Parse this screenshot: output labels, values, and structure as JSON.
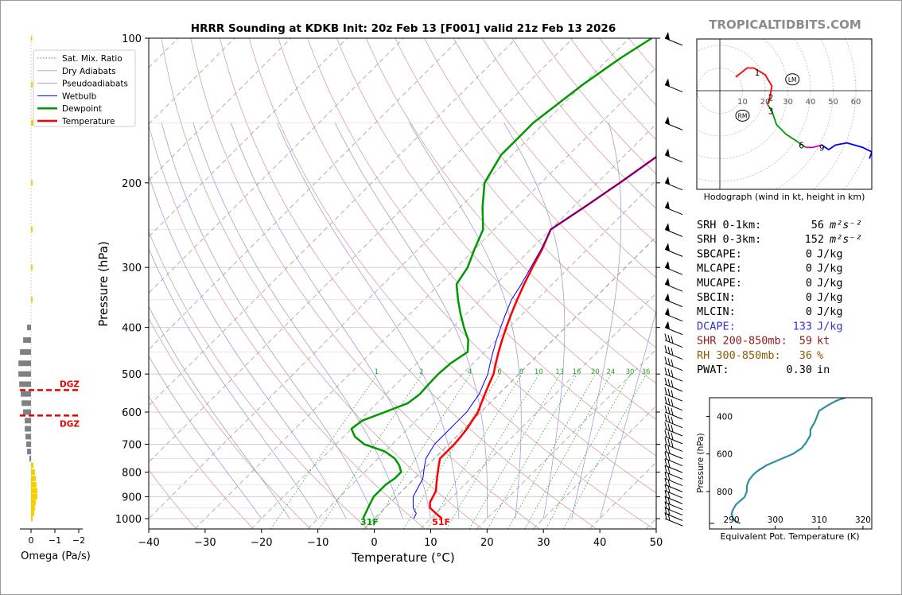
{
  "chart_data": [
    {
      "type": "line",
      "subtype": "skew-t log-p sounding",
      "title": "HRRR Sounding at KDKB Init: 20z Feb 13 [F001] valid 21z Feb 13 2026",
      "xlabel": "Temperature (°C)",
      "ylabel": "Pressure (hPa)",
      "xlim": [
        -40,
        50
      ],
      "ylim": [
        1050,
        100
      ],
      "y_scale": "log",
      "x_ticks": [
        "−40",
        "−30",
        "−20",
        "−10",
        "0",
        "10",
        "20",
        "30",
        "40",
        "50"
      ],
      "y_ticks": [
        "100",
        "200",
        "300",
        "400",
        "500",
        "600",
        "700",
        "800",
        "900",
        "1000"
      ],
      "legend": {
        "placement": "top-left",
        "entries": [
          {
            "label": "Sat. Mix. Ratio",
            "color": "#2ca02c",
            "style": "dotted"
          },
          {
            "label": "Dry Adiabats",
            "color": "#d9a0a0",
            "style": "solid"
          },
          {
            "label": "Pseudoadiabats",
            "color": "#a0a0d9",
            "style": "solid"
          },
          {
            "label": "Wetbulb",
            "color": "#0000ff",
            "style": "solid"
          },
          {
            "label": "Dewpoint",
            "color": "#009900",
            "style": "solid"
          },
          {
            "label": "Temperature",
            "color": "#ff0000",
            "style": "solid"
          }
        ]
      },
      "mixing_ratio_labels": [
        "1",
        "2",
        "4",
        "6",
        "8",
        "10",
        "13",
        "16",
        "20",
        "24",
        "30",
        "36"
      ],
      "series": [
        {
          "name": "Temperature",
          "color": "#ff0000",
          "points": [
            [
              1000,
              12
            ],
            [
              975,
              10
            ],
            [
              950,
              8
            ],
            [
              925,
              7
            ],
            [
              900,
              6.5
            ],
            [
              875,
              6
            ],
            [
              850,
              5
            ],
            [
              825,
              4
            ],
            [
              800,
              3
            ],
            [
              775,
              2
            ],
            [
              750,
              1
            ],
            [
              725,
              1
            ],
            [
              700,
              1
            ],
            [
              675,
              0.8
            ],
            [
              650,
              0.5
            ],
            [
              625,
              0
            ],
            [
              600,
              -0.5
            ],
            [
              575,
              -1.5
            ],
            [
              550,
              -2.5
            ],
            [
              525,
              -3.5
            ],
            [
              500,
              -4.5
            ],
            [
              475,
              -6
            ],
            [
              450,
              -7.5
            ],
            [
              425,
              -9
            ],
            [
              400,
              -10.5
            ],
            [
              375,
              -12
            ],
            [
              350,
              -13.5
            ],
            [
              325,
              -15
            ],
            [
              300,
              -16.5
            ],
            [
              275,
              -18
            ],
            [
              250,
              -20
            ],
            [
              225,
              -18
            ],
            [
              200,
              -16
            ],
            [
              175,
              -14
            ],
            [
              150,
              -12
            ],
            [
              125,
              -12
            ],
            [
              110,
              -11.5
            ],
            [
              100,
              -11
            ]
          ]
        },
        {
          "name": "Dewpoint",
          "color": "#009900",
          "points": [
            [
              1000,
              -2
            ],
            [
              975,
              -2.5
            ],
            [
              950,
              -3
            ],
            [
              925,
              -3.5
            ],
            [
              900,
              -4
            ],
            [
              875,
              -4
            ],
            [
              850,
              -4
            ],
            [
              825,
              -3.5
            ],
            [
              800,
              -3.5
            ],
            [
              775,
              -5
            ],
            [
              750,
              -7
            ],
            [
              725,
              -10
            ],
            [
              700,
              -15
            ],
            [
              675,
              -18
            ],
            [
              650,
              -20
            ],
            [
              625,
              -19.5
            ],
            [
              600,
              -17
            ],
            [
              575,
              -14.5
            ],
            [
              550,
              -14
            ],
            [
              525,
              -14.2
            ],
            [
              500,
              -14.3
            ],
            [
              475,
              -14
            ],
            [
              450,
              -13
            ],
            [
              425,
              -15
            ],
            [
              400,
              -18
            ],
            [
              375,
              -21
            ],
            [
              350,
              -24
            ],
            [
              325,
              -27
            ],
            [
              300,
              -28
            ],
            [
              275,
              -30
            ],
            [
              250,
              -32
            ],
            [
              225,
              -36
            ],
            [
              200,
              -40
            ],
            [
              175,
              -42
            ],
            [
              150,
              -42
            ],
            [
              125,
              -40
            ],
            [
              110,
              -38
            ],
            [
              100,
              -36
            ]
          ]
        },
        {
          "name": "Wetbulb",
          "color": "#0000ff",
          "points": [
            [
              1000,
              7
            ],
            [
              975,
              6.5
            ],
            [
              950,
              5
            ],
            [
              925,
              4
            ],
            [
              900,
              3
            ],
            [
              875,
              2.5
            ],
            [
              850,
              2
            ],
            [
              825,
              1.5
            ],
            [
              800,
              0.5
            ],
            [
              775,
              -0.5
            ],
            [
              750,
              -1.5
            ],
            [
              725,
              -2
            ],
            [
              700,
              -2.5
            ],
            [
              675,
              -2.5
            ],
            [
              650,
              -2.5
            ],
            [
              625,
              -2.5
            ],
            [
              600,
              -2.5
            ],
            [
              575,
              -3
            ],
            [
              550,
              -3.5
            ],
            [
              525,
              -4.5
            ],
            [
              500,
              -5.5
            ],
            [
              475,
              -7
            ],
            [
              450,
              -8.5
            ],
            [
              425,
              -10
            ],
            [
              400,
              -11.5
            ],
            [
              375,
              -13
            ],
            [
              350,
              -14.5
            ],
            [
              325,
              -15.5
            ],
            [
              300,
              -16.8
            ],
            [
              275,
              -18.2
            ],
            [
              250,
              -20
            ],
            [
              225,
              -18
            ],
            [
              200,
              -16
            ],
            [
              175,
              -14
            ],
            [
              150,
              -12
            ],
            [
              125,
              -12
            ],
            [
              110,
              -11.5
            ],
            [
              100,
              -11
            ]
          ]
        }
      ],
      "surface_labels": {
        "dewpoint": "31F",
        "temperature": "51F"
      },
      "dgz_label": "DGZ",
      "dgz_pressures": [
        540,
        610
      ],
      "omega": {
        "xlabel": "Omega (Pa/s)",
        "x_ticks": [
          "0",
          "−1",
          "−2"
        ],
        "dgz_label": "DGZ",
        "profile": [
          [
            1000,
            0.02
          ],
          [
            975,
            0.04
          ],
          [
            950,
            0.05
          ],
          [
            925,
            0.06
          ],
          [
            900,
            0.08
          ],
          [
            875,
            0.08
          ],
          [
            850,
            0.07
          ],
          [
            825,
            0.06
          ],
          [
            800,
            0.05
          ],
          [
            775,
            0.03
          ],
          [
            750,
            -0.02
          ],
          [
            725,
            -0.05
          ],
          [
            700,
            -0.06
          ],
          [
            675,
            -0.07
          ],
          [
            650,
            -0.08
          ],
          [
            625,
            -0.08
          ],
          [
            600,
            -0.1
          ],
          [
            575,
            -0.12
          ],
          [
            550,
            -0.13
          ],
          [
            525,
            -0.15
          ],
          [
            500,
            -0.16
          ],
          [
            475,
            -0.16
          ],
          [
            450,
            -0.14
          ],
          [
            425,
            -0.1
          ],
          [
            400,
            -0.05
          ],
          [
            350,
            0.02
          ],
          [
            300,
            0.02
          ],
          [
            250,
            0.02
          ],
          [
            200,
            0.02
          ],
          [
            150,
            0.03
          ],
          [
            125,
            0.02
          ],
          [
            100,
            0.01
          ]
        ]
      },
      "wind_barbs": [
        100,
        125,
        150,
        175,
        200,
        225,
        250,
        275,
        300,
        325,
        350,
        375,
        400,
        425,
        450,
        475,
        500,
        525,
        550,
        575,
        600,
        625,
        650,
        675,
        700,
        725,
        750,
        775,
        800,
        825,
        850,
        875,
        900,
        925,
        950,
        975,
        1000
      ]
    },
    {
      "type": "line",
      "subtype": "hodograph",
      "caption": "Hodograph (wind in kt, height in km)",
      "ring_labels": [
        "10",
        "20",
        "30",
        "40",
        "50",
        "60"
      ],
      "height_labels": [
        "1",
        "2",
        "3",
        "6",
        "9"
      ],
      "storm_motion_labels": [
        "LM",
        "RM"
      ],
      "segments": [
        {
          "color": "#ff0000",
          "points": [
            [
              7,
              6
            ],
            [
              12,
              10
            ],
            [
              15,
              10
            ],
            [
              20,
              7
            ],
            [
              23,
              2
            ],
            [
              22,
              -3
            ],
            [
              21,
              -6
            ]
          ]
        },
        {
          "color": "#009900",
          "points": [
            [
              21,
              -6
            ],
            [
              23,
              -9
            ],
            [
              25,
              -15
            ],
            [
              29,
              -19
            ],
            [
              35,
              -23
            ],
            [
              38,
              -25
            ]
          ]
        },
        {
          "color": "#cc00cc",
          "points": [
            [
              38,
              -25
            ],
            [
              41,
              -25
            ],
            [
              45,
              -24
            ]
          ]
        },
        {
          "color": "#0000ff",
          "points": [
            [
              45,
              -24
            ],
            [
              48,
              -26
            ],
            [
              51,
              -24
            ],
            [
              56,
              -23
            ],
            [
              63,
              -25
            ],
            [
              67,
              -27
            ],
            [
              66,
              -30
            ]
          ]
        }
      ]
    },
    {
      "type": "line",
      "subtype": "equivalent potential temperature profile",
      "xlabel": "Equivalent Pot. Temperature (K)",
      "ylabel": "Pressure (hPa)",
      "x_ticks": [
        "290",
        "300",
        "310",
        "320"
      ],
      "y_ticks": [
        "400",
        "600",
        "800"
      ],
      "xlim": [
        285,
        322
      ],
      "ylim": [
        1000,
        300
      ],
      "line_color": "#2f8f9f",
      "points": [
        [
          970,
          292
        ],
        [
          960,
          291
        ],
        [
          950,
          290.5
        ],
        [
          920,
          290
        ],
        [
          900,
          290.3
        ],
        [
          870,
          291
        ],
        [
          850,
          292
        ],
        [
          830,
          293
        ],
        [
          800,
          293.5
        ],
        [
          770,
          293.5
        ],
        [
          740,
          294
        ],
        [
          710,
          295
        ],
        [
          690,
          296
        ],
        [
          660,
          298
        ],
        [
          630,
          301
        ],
        [
          600,
          304
        ],
        [
          570,
          306
        ],
        [
          540,
          307
        ],
        [
          500,
          308
        ],
        [
          470,
          308
        ],
        [
          430,
          309
        ],
        [
          400,
          309.5
        ],
        [
          370,
          310
        ],
        [
          340,
          312
        ],
        [
          315,
          314
        ],
        [
          300,
          316
        ]
      ]
    }
  ],
  "brand": "TROPICALTIDBITS.COM",
  "indices": [
    {
      "label": "SRH 0-1km:",
      "value": "56",
      "unit": "m²s⁻²",
      "color": "#000000"
    },
    {
      "label": "SRH 0-3km:",
      "value": "152",
      "unit": "m²s⁻²",
      "color": "#000000"
    },
    {
      "label": "SBCAPE:",
      "value": "0",
      "unit": "J/kg",
      "color": "#000000"
    },
    {
      "label": "MLCAPE:",
      "value": "0",
      "unit": "J/kg",
      "color": "#000000"
    },
    {
      "label": "MUCAPE:",
      "value": "0",
      "unit": "J/kg",
      "color": "#000000"
    },
    {
      "label": "SBCIN:",
      "value": "0",
      "unit": "J/kg",
      "color": "#000000"
    },
    {
      "label": "MLCIN:",
      "value": "0",
      "unit": "J/kg",
      "color": "#000000"
    },
    {
      "label": "DCAPE:",
      "value": "133",
      "unit": "J/kg",
      "color": "#3333cc"
    },
    {
      "label": "SHR 200-850mb:",
      "value": "59",
      "unit": "kt",
      "color": "#8b1a1a"
    },
    {
      "label": "RH 300-850mb:",
      "value": "36",
      "unit": "%",
      "color": "#8b5a00"
    },
    {
      "label": "PWAT:",
      "value": "0.30",
      "unit": "in",
      "color": "#000000"
    }
  ]
}
